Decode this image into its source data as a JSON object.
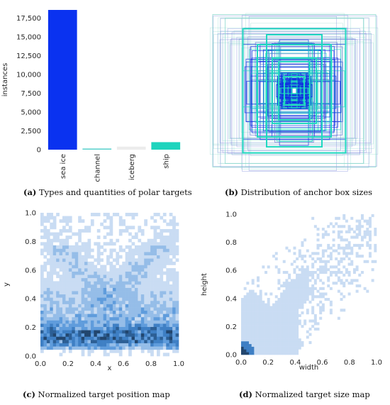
{
  "captions": {
    "a": {
      "letter": "(a)",
      "text": "Types and quantities of polar targets"
    },
    "b": {
      "letter": "(b)",
      "text": "Distribution of anchor box sizes"
    },
    "c": {
      "letter": "(c)",
      "text": "Normalized target position map"
    },
    "d": {
      "letter": "(d)",
      "text": "Normalized target size map"
    }
  },
  "chart_data": [
    {
      "id": "a",
      "type": "bar",
      "categories": [
        "sea ice",
        "channel",
        "iceberg",
        "ship"
      ],
      "values": [
        18600,
        150,
        400,
        1000
      ],
      "colors": [
        "#0a32f0",
        "#5fd3cf",
        "#ececec",
        "#1ed4bd"
      ],
      "ylabel": "instances",
      "ylim": [
        0,
        18600
      ],
      "yticks": [
        0,
        2500,
        5000,
        7500,
        10000,
        12500,
        15000,
        17500
      ],
      "ytick_labels": [
        "0",
        "2,500",
        "5,000",
        "7,500",
        "10,000",
        "12,500",
        "15,000",
        "17,500"
      ]
    },
    {
      "id": "b",
      "type": "scatter",
      "description_kind": "anchor-box-overlay",
      "box_colors": [
        "#1030e0",
        "#20d8c0",
        "#6b7bd6",
        "#8fd8d0"
      ]
    },
    {
      "id": "c",
      "type": "heatmap",
      "xlabel": "x",
      "ylabel": "y",
      "xlim": [
        0,
        1
      ],
      "ylim": [
        0,
        1
      ],
      "xticks": [
        0.0,
        0.2,
        0.4,
        0.6,
        0.8,
        1.0
      ],
      "yticks": [
        0.0,
        0.2,
        0.4,
        0.6,
        0.8,
        1.0
      ],
      "xtick_labels": [
        "0.0",
        "0.2",
        "0.4",
        "0.6",
        "0.8",
        "1.0"
      ],
      "ytick_labels": [
        "0.0",
        "0.2",
        "0.4",
        "0.6",
        "0.8",
        "1.0"
      ],
      "colormap": [
        "#c9dcf3",
        "#95bde8",
        "#5f9cdc",
        "#3e7fc4",
        "#2c5f95",
        "#22466e"
      ]
    },
    {
      "id": "d",
      "type": "heatmap",
      "xlabel": "width",
      "ylabel": "height",
      "xlim": [
        0,
        1
      ],
      "ylim": [
        0,
        1
      ],
      "xticks": [
        0.0,
        0.2,
        0.4,
        0.6,
        0.8,
        1.0
      ],
      "yticks": [
        0.0,
        0.2,
        0.4,
        0.6,
        0.8,
        1.0
      ],
      "xtick_labels": [
        "0.0",
        "0.2",
        "0.4",
        "0.6",
        "0.8",
        "1.0"
      ],
      "ytick_labels": [
        "0.0",
        "0.2",
        "0.4",
        "0.6",
        "0.8",
        "1.0"
      ],
      "colormap": [
        "#c9dcf3",
        "#95bde8",
        "#5f9cdc",
        "#3e7fc4",
        "#2c5f95",
        "#22466e"
      ]
    }
  ]
}
